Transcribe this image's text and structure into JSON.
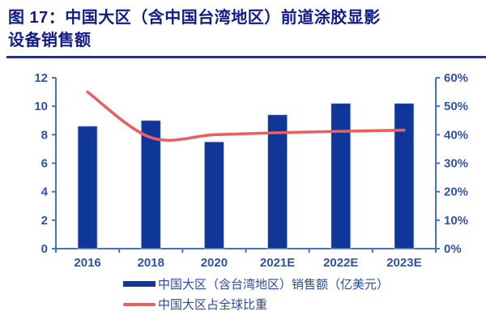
{
  "title": {
    "full": "图 17：中国大区（含中国台湾地区）前道涂胶显影设备销售额",
    "line1": "图 17：中国大区（含中国台湾地区）前道涂胶显影",
    "line2": "设备销售额",
    "color": "#111A8D",
    "underline_color": "#1E2CA0"
  },
  "chart_data": {
    "type": "bar",
    "subtype": "bar-line-combo",
    "categories": [
      "2016",
      "2018",
      "2020",
      "2021E",
      "2022E",
      "2023E"
    ],
    "series": [
      {
        "name": "中国大区（含台湾地区）销售额（亿美元）",
        "type": "bar",
        "axis": "left",
        "color": "#0F3699",
        "values": [
          8.6,
          9.0,
          7.5,
          9.4,
          10.2,
          10.2
        ]
      },
      {
        "name": "中国大区占全球比重",
        "type": "line",
        "axis": "right",
        "unit": "%",
        "color": "#E96060",
        "values": [
          55,
          39,
          40,
          40.7,
          41.2,
          41.6
        ]
      }
    ],
    "left_axis": {
      "min": 0,
      "max": 12,
      "step": 2,
      "tick_labels": [
        "0",
        "2",
        "4",
        "6",
        "8",
        "10",
        "12"
      ]
    },
    "right_axis": {
      "min": 0,
      "max": 60,
      "step": 10,
      "tick_labels": [
        "0%",
        "10%",
        "20%",
        "30%",
        "40%",
        "50%",
        "60%"
      ]
    },
    "axis_color": "#4472C4",
    "tick_label_color": "#2F52A8",
    "grid": false,
    "legend_position": "bottom"
  }
}
